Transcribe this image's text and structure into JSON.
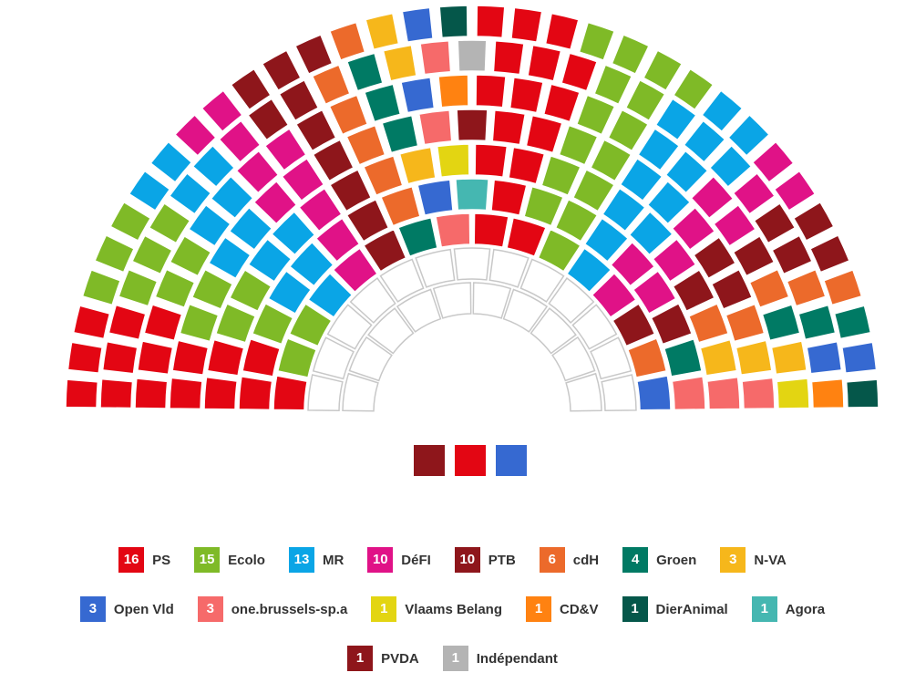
{
  "chart_data": {
    "type": "parliament",
    "total_seats": 89,
    "parties": [
      {
        "name": "PS",
        "seats": 16,
        "color": "#e30613"
      },
      {
        "name": "Ecolo",
        "seats": 15,
        "color": "#7fba27"
      },
      {
        "name": "MR",
        "seats": 13,
        "color": "#0aa5e6"
      },
      {
        "name": "DéFI",
        "seats": 10,
        "color": "#e01287"
      },
      {
        "name": "PTB",
        "seats": 10,
        "color": "#8e161b"
      },
      {
        "name": "cdH",
        "seats": 6,
        "color": "#ec6a2b"
      },
      {
        "name": "Groen",
        "seats": 4,
        "color": "#007a64"
      },
      {
        "name": "N-VA",
        "seats": 3,
        "color": "#f6b71b"
      },
      {
        "name": "Open Vld",
        "seats": 3,
        "color": "#3669d1"
      },
      {
        "name": "one.brussels-sp.a",
        "seats": 3,
        "color": "#f66a6a"
      },
      {
        "name": "Vlaams Belang",
        "seats": 1,
        "color": "#e3d512"
      },
      {
        "name": "CD&V",
        "seats": 1,
        "color": "#ff8211"
      },
      {
        "name": "DierAnimal",
        "seats": 1,
        "color": "#05574a"
      },
      {
        "name": "Agora",
        "seats": 1,
        "color": "#45b7b1"
      },
      {
        "name": "PVDA",
        "seats": 1,
        "color": "#8e161b"
      },
      {
        "name": "Indépendant",
        "seats": 1,
        "color": "#b4b4b4"
      }
    ],
    "legend_rows": [
      [
        "PS",
        "Ecolo",
        "MR",
        "DéFI",
        "PTB",
        "cdH",
        "Groen",
        "N-VA"
      ],
      [
        "Open Vld",
        "one.brussels-sp.a",
        "Vlaams Belang",
        "CD&V",
        "DierAnimal",
        "Agora"
      ],
      [
        "PVDA",
        "Indépendant"
      ]
    ],
    "presidium_colors": [
      "#8e161b",
      "#e30613",
      "#3669d1"
    ],
    "empty_seats": 10
  }
}
